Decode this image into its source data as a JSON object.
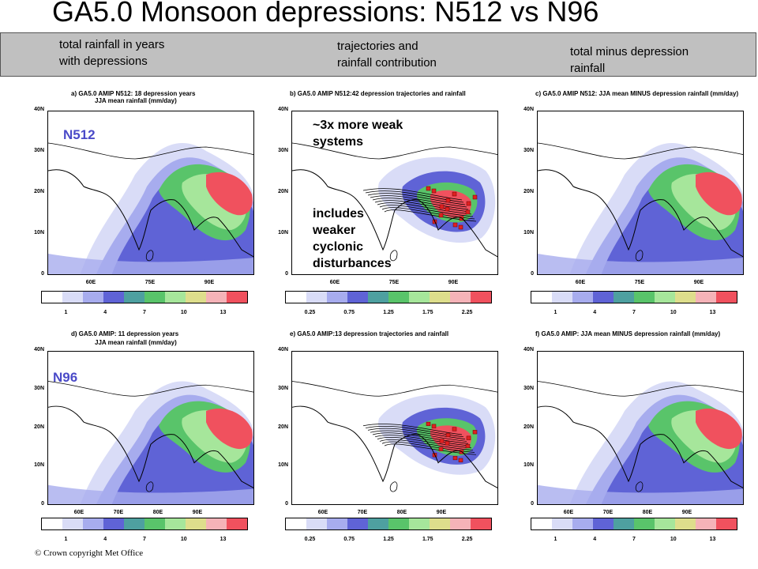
{
  "title": "GA5.0 Monsoon depressions: N512 vs N96",
  "banner": {
    "col1": [
      "total rainfall in years",
      "with depressions"
    ],
    "col2": [
      "trajectories and",
      "rainfall contribution"
    ],
    "col3": [
      "total minus depression",
      "rainfall"
    ]
  },
  "panels": {
    "a": {
      "t1": "a) GA5.0 AMIP N512: 18 depression years",
      "t2": "JJA mean rainfall (mm/day)"
    },
    "b": {
      "t1": "b) GA5.0 AMIP N512:42 depression trajectories and rainfall",
      "t2": ""
    },
    "c": {
      "t1": "c) GA5.0 AMIP N512: JJA mean MINUS depression rainfall (mm/day)",
      "t2": ""
    },
    "d": {
      "t1": "d) GA5.0 AMIP: 11 depression years",
      "t2": "JJA mean rainfall (mm/day)"
    },
    "e": {
      "t1": "e) GA5.0 AMIP:13 depression trajectories and rainfall",
      "t2": ""
    },
    "f": {
      "t1": "f) GA5.0 AMIP: JJA mean MINUS depression rainfall (mm/day)",
      "t2": ""
    }
  },
  "axes": {
    "y": [
      "40N",
      "30N",
      "20N",
      "10N",
      "0"
    ],
    "x_top": [
      "60E",
      "75E",
      "90E"
    ],
    "x_bottom": [
      "60E",
      "70E",
      "80E",
      "90E"
    ]
  },
  "colorbar": {
    "colors": [
      "#ffffff",
      "#d9dcf7",
      "#a7acee",
      "#5f63d6",
      "#4ea0a0",
      "#59c46a",
      "#a6e69b",
      "#dede8c",
      "#f5b3b8",
      "#f0515e"
    ],
    "labels_total": [
      "1",
      "4",
      "7",
      "10",
      "13"
    ],
    "labels_depr": [
      "0.25",
      "0.75",
      "1.25",
      "1.75",
      "2.25"
    ]
  },
  "labels": {
    "n512": "N512",
    "n96": "N96"
  },
  "notes": {
    "weak": [
      "~3x more weak",
      "systems"
    ],
    "includes": [
      "includes",
      "weaker",
      "cyclonic",
      "disturbances"
    ]
  },
  "copyright": "© Crown copyright   Met Office"
}
